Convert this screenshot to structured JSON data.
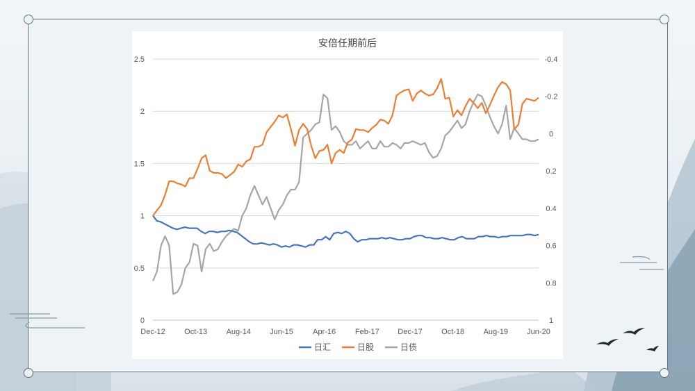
{
  "chart_data": {
    "type": "line",
    "title": "安倍任期前后",
    "x_tick_labels": [
      "Dec-12",
      "Oct-13",
      "Aug-14",
      "Jun-15",
      "Apr-16",
      "Feb-17",
      "Dec-17",
      "Oct-18",
      "Aug-19",
      "Jun-20"
    ],
    "y_left": {
      "lim": [
        0,
        2.5
      ],
      "ticks": [
        0,
        0.5,
        1,
        1.5,
        2,
        2.5
      ],
      "tick_labels": [
        "0",
        "0.5",
        "1",
        "1.5",
        "2",
        "2.5"
      ]
    },
    "y_right": {
      "lim": [
        1,
        -0.4
      ],
      "inverted": true,
      "ticks": [
        -0.4,
        -0.2,
        0,
        0.2,
        0.4,
        0.6,
        0.8,
        1
      ],
      "tick_labels": [
        "-0.4",
        "-0.2",
        "0",
        "0.2",
        "0.4",
        "0.6",
        "0.8",
        "1"
      ]
    },
    "grid": "horizontal",
    "legend_position": "bottom",
    "series": [
      {
        "name": "日汇",
        "axis": "left",
        "color": "#4472c4",
        "values": [
          1.0,
          0.95,
          0.94,
          0.92,
          0.9,
          0.88,
          0.87,
          0.88,
          0.89,
          0.88,
          0.88,
          0.88,
          0.85,
          0.83,
          0.85,
          0.85,
          0.84,
          0.85,
          0.85,
          0.86,
          0.85,
          0.84,
          0.81,
          0.78,
          0.75,
          0.73,
          0.73,
          0.74,
          0.73,
          0.72,
          0.73,
          0.72,
          0.7,
          0.71,
          0.7,
          0.72,
          0.72,
          0.71,
          0.7,
          0.72,
          0.72,
          0.77,
          0.77,
          0.8,
          0.77,
          0.83,
          0.84,
          0.83,
          0.85,
          0.83,
          0.78,
          0.75,
          0.77,
          0.77,
          0.78,
          0.78,
          0.78,
          0.79,
          0.78,
          0.79,
          0.78,
          0.77,
          0.77,
          0.78,
          0.78,
          0.8,
          0.81,
          0.81,
          0.79,
          0.79,
          0.78,
          0.78,
          0.79,
          0.78,
          0.77,
          0.77,
          0.79,
          0.8,
          0.78,
          0.78,
          0.78,
          0.8,
          0.8,
          0.81,
          0.8,
          0.8,
          0.79,
          0.8,
          0.8,
          0.81,
          0.81,
          0.81,
          0.81,
          0.82,
          0.82,
          0.81,
          0.82
        ]
      },
      {
        "name": "日股",
        "axis": "left",
        "color": "#ed7d31",
        "values": [
          1.0,
          1.05,
          1.1,
          1.2,
          1.33,
          1.33,
          1.31,
          1.3,
          1.28,
          1.36,
          1.36,
          1.45,
          1.55,
          1.58,
          1.43,
          1.41,
          1.41,
          1.4,
          1.36,
          1.39,
          1.42,
          1.49,
          1.47,
          1.52,
          1.54,
          1.66,
          1.66,
          1.68,
          1.8,
          1.85,
          1.9,
          1.96,
          1.94,
          1.97,
          1.83,
          1.67,
          1.82,
          1.88,
          1.83,
          1.67,
          1.55,
          1.62,
          1.63,
          1.68,
          1.5,
          1.6,
          1.63,
          1.6,
          1.7,
          1.73,
          1.83,
          1.82,
          1.82,
          1.8,
          1.84,
          1.87,
          1.92,
          1.91,
          1.88,
          1.96,
          2.15,
          2.18,
          2.2,
          2.21,
          2.1,
          2.17,
          2.2,
          2.17,
          2.15,
          2.16,
          2.22,
          2.31,
          2.12,
          2.13,
          1.95,
          2.01,
          1.96,
          2.05,
          2.12,
          2.08,
          2.03,
          2.08,
          1.98,
          2.06,
          2.15,
          2.23,
          2.28,
          2.26,
          2.2,
          1.83,
          1.87,
          2.07,
          2.12,
          2.11,
          2.1,
          2.13
        ]
      },
      {
        "name": "日债",
        "axis": "right",
        "color": "#a5a5a5",
        "values": [
          0.79,
          0.74,
          0.6,
          0.55,
          0.6,
          0.86,
          0.85,
          0.81,
          0.72,
          0.69,
          0.59,
          0.6,
          0.74,
          0.62,
          0.59,
          0.63,
          0.62,
          0.58,
          0.55,
          0.53,
          0.51,
          0.52,
          0.44,
          0.4,
          0.33,
          0.28,
          0.33,
          0.38,
          0.34,
          0.4,
          0.46,
          0.41,
          0.38,
          0.33,
          0.3,
          0.3,
          0.26,
          0.02,
          0.0,
          -0.02,
          -0.05,
          -0.06,
          -0.21,
          -0.19,
          -0.02,
          -0.04,
          -0.01,
          0.04,
          0.06,
          0.06,
          0.04,
          0.08,
          0.06,
          0.04,
          0.08,
          0.08,
          0.04,
          0.07,
          0.07,
          0.05,
          0.06,
          0.08,
          0.05,
          0.05,
          0.04,
          0.05,
          0.06,
          0.05,
          0.1,
          0.13,
          0.12,
          0.08,
          0.01,
          -0.01,
          -0.04,
          -0.07,
          -0.03,
          -0.05,
          -0.12,
          -0.17,
          -0.21,
          -0.2,
          -0.15,
          -0.09,
          -0.04,
          0.0,
          -0.05,
          -0.15,
          0.03,
          -0.03,
          0.0,
          0.03,
          0.03,
          0.04,
          0.04,
          0.03
        ]
      }
    ]
  },
  "legend": {
    "items": [
      {
        "label": "日汇",
        "color": "#4472c4"
      },
      {
        "label": "日股",
        "color": "#ed7d31"
      },
      {
        "label": "日债",
        "color": "#a5a5a5"
      }
    ]
  }
}
